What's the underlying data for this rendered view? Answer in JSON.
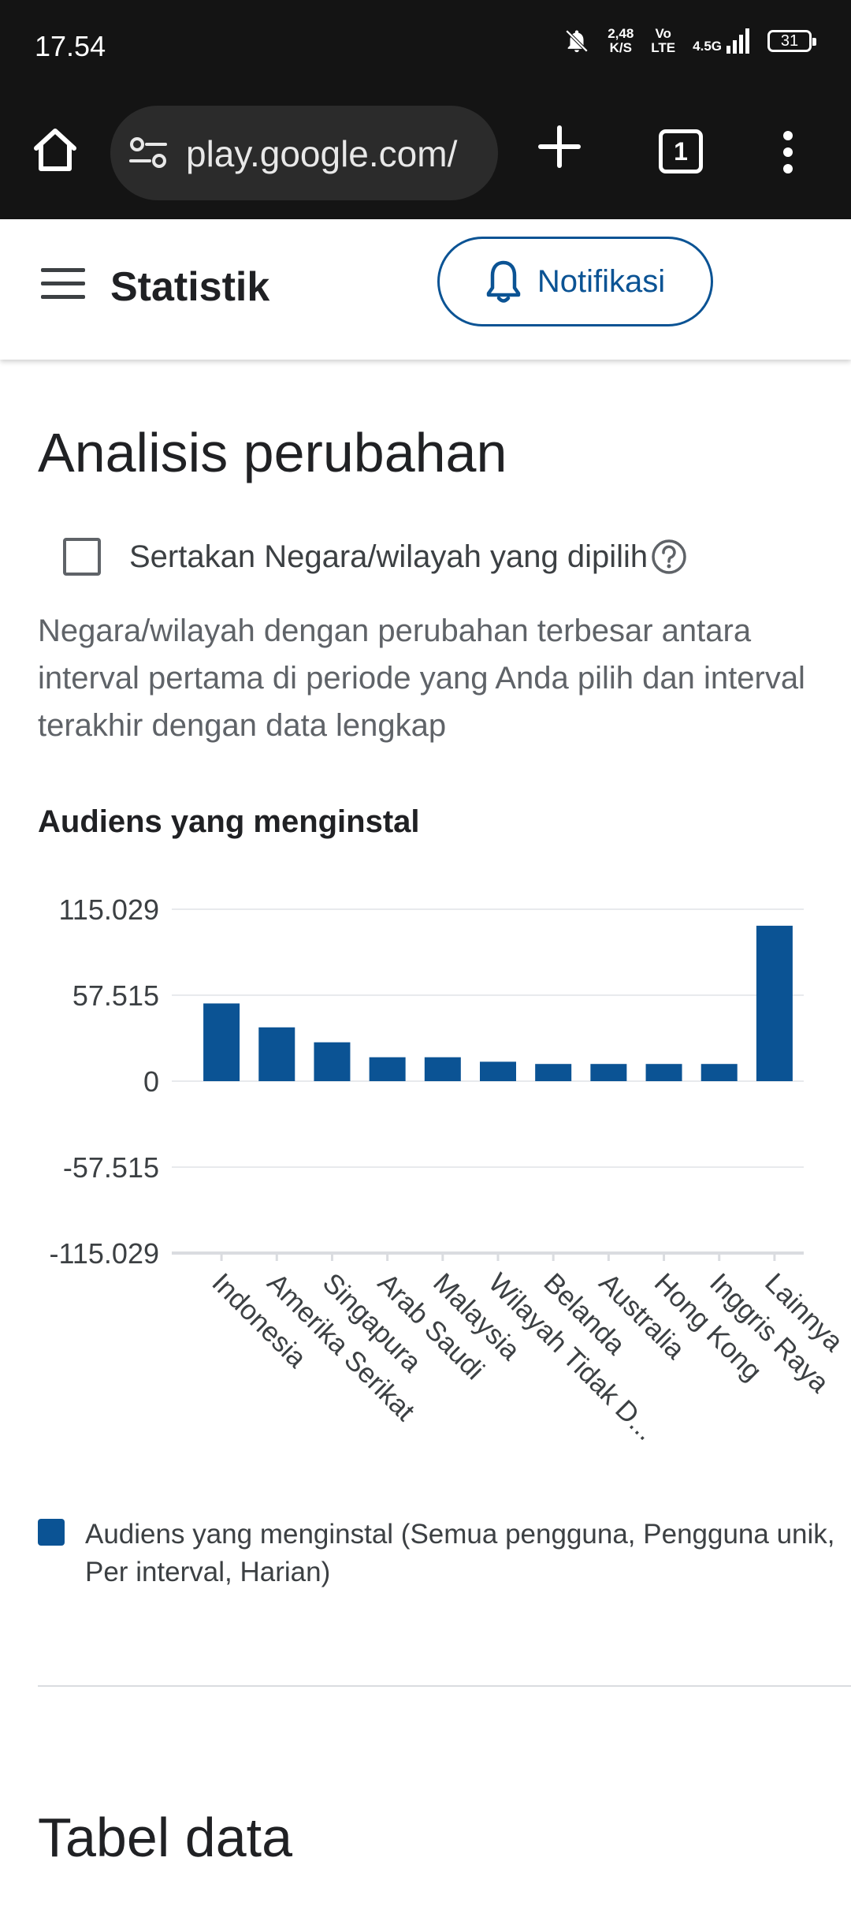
{
  "status_bar": {
    "time": "17.54",
    "speed_value": "2,48",
    "speed_unit": "K/S",
    "volte": "Vo",
    "lte": "LTE",
    "network": "4.5G",
    "battery": "31"
  },
  "browser": {
    "url": "play.google.com/",
    "tab_count": "1",
    "icons": [
      "home-icon",
      "site-settings-icon",
      "new-tab-icon",
      "tab-switcher-icon",
      "more-icon"
    ]
  },
  "header": {
    "title": "Statistik",
    "notification_button": "Notifikasi"
  },
  "main": {
    "section_title": "Analisis perubahan",
    "checkbox_label": "Sertakan Negara/wilayah yang dipilih",
    "checkbox_checked": false,
    "description": "Negara/wilayah dengan perubahan terbesar antara interval pertama di periode yang Anda pilih dan interval terakhir dengan data lengkap",
    "chart_title": "Audiens yang menginstal",
    "legend_label": "Audiens yang menginstal (Semua pengguna, Pengguna unik, Per interval, Harian)",
    "table_title": "Tabel data"
  },
  "colors": {
    "bar": "#0b5394",
    "accent": "#0b5394"
  },
  "chart_data": {
    "type": "bar",
    "title": "Audiens yang menginstal",
    "categories": [
      "Indonesia",
      "Amerika Serikat",
      "Singapura",
      "Arab Saudi",
      "Malaysia",
      "Wilayah Tidak D...",
      "Belanda",
      "Australia",
      "Hong Kong",
      "Inggris Raya",
      "Lainnya"
    ],
    "series": [
      {
        "name": "Audiens yang menginstal (Semua pengguna, Pengguna unik, Per interval, Harian)",
        "values": [
          52000,
          36000,
          26000,
          16000,
          16000,
          13000,
          11500,
          11500,
          11500,
          11500,
          104000
        ]
      }
    ],
    "yticks": [
      "115.029",
      "57.515",
      "0",
      "-57.515",
      "-115.029"
    ],
    "ylim": [
      -115029,
      115029
    ],
    "grid": true,
    "legend_position": "bottom"
  }
}
